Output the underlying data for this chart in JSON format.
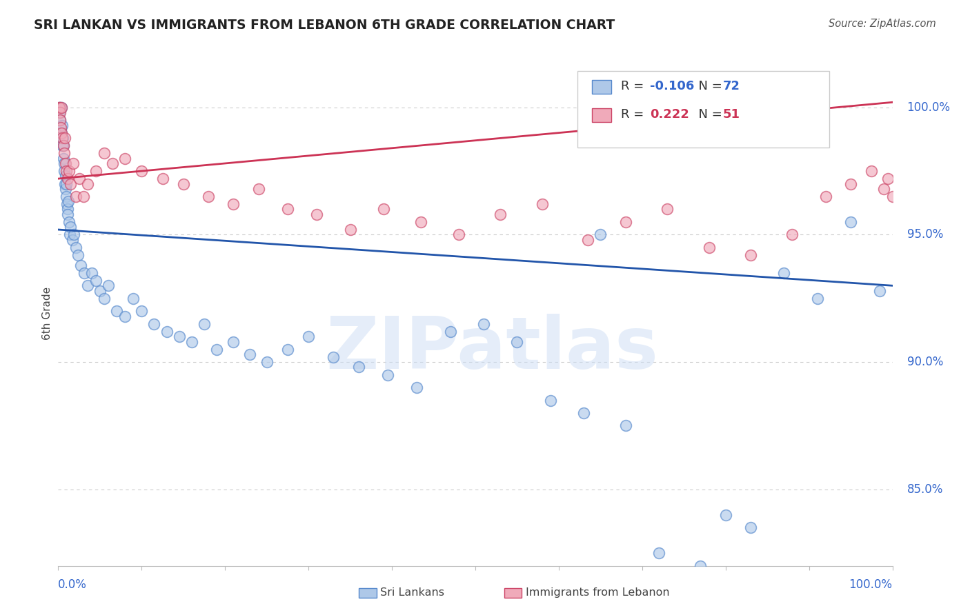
{
  "title": "SRI LANKAN VS IMMIGRANTS FROM LEBANON 6TH GRADE CORRELATION CHART",
  "source": "Source: ZipAtlas.com",
  "ylabel": "6th Grade",
  "right_yticks": [
    85.0,
    90.0,
    95.0,
    100.0
  ],
  "xlim": [
    0.0,
    100.0
  ],
  "ylim": [
    82.0,
    101.8
  ],
  "sri_lankan_R": -0.106,
  "sri_lankan_N": 72,
  "lebanon_R": 0.222,
  "lebanon_N": 51,
  "sri_lankan_color": "#aec8e8",
  "lebanon_color": "#f0aaba",
  "sri_lankan_edge_color": "#5588cc",
  "lebanon_edge_color": "#cc4466",
  "sri_lankan_line_color": "#2255aa",
  "lebanon_line_color": "#cc3355",
  "watermark": "ZIPatlas",
  "sl_trend_start": 95.2,
  "sl_trend_end": 93.0,
  "lb_trend_start": 97.2,
  "lb_trend_end": 100.2,
  "sri_lankans_x": [
    0.1,
    0.15,
    0.2,
    0.25,
    0.3,
    0.35,
    0.4,
    0.45,
    0.5,
    0.55,
    0.6,
    0.65,
    0.7,
    0.75,
    0.8,
    0.85,
    0.9,
    0.95,
    1.0,
    1.05,
    1.1,
    1.15,
    1.2,
    1.3,
    1.4,
    1.5,
    1.7,
    1.9,
    2.1,
    2.4,
    2.7,
    3.1,
    3.5,
    4.0,
    4.5,
    5.0,
    5.5,
    6.0,
    7.0,
    8.0,
    9.0,
    10.0,
    11.5,
    13.0,
    14.5,
    16.0,
    17.5,
    19.0,
    21.0,
    23.0,
    25.0,
    27.5,
    30.0,
    33.0,
    36.0,
    39.5,
    43.0,
    47.0,
    51.0,
    55.0,
    59.0,
    63.0,
    65.0,
    68.0,
    72.0,
    77.0,
    80.0,
    83.0,
    87.0,
    91.0,
    95.0,
    98.5
  ],
  "sri_lankans_y": [
    100.0,
    99.8,
    99.5,
    100.0,
    99.2,
    100.0,
    99.0,
    98.5,
    99.3,
    98.8,
    98.5,
    98.0,
    97.8,
    97.5,
    97.0,
    97.3,
    96.8,
    97.0,
    96.5,
    96.2,
    96.0,
    95.8,
    96.3,
    95.5,
    95.0,
    95.3,
    94.8,
    95.0,
    94.5,
    94.2,
    93.8,
    93.5,
    93.0,
    93.5,
    93.2,
    92.8,
    92.5,
    93.0,
    92.0,
    91.8,
    92.5,
    92.0,
    91.5,
    91.2,
    91.0,
    90.8,
    91.5,
    90.5,
    90.8,
    90.3,
    90.0,
    90.5,
    91.0,
    90.2,
    89.8,
    89.5,
    89.0,
    91.2,
    91.5,
    90.8,
    88.5,
    88.0,
    95.0,
    87.5,
    82.5,
    82.0,
    84.0,
    83.5,
    93.5,
    92.5,
    95.5,
    92.8
  ],
  "lebanon_x": [
    0.1,
    0.15,
    0.2,
    0.25,
    0.3,
    0.35,
    0.4,
    0.5,
    0.6,
    0.7,
    0.8,
    0.9,
    1.0,
    1.1,
    1.3,
    1.5,
    1.8,
    2.1,
    2.5,
    3.0,
    3.5,
    4.5,
    5.5,
    6.5,
    8.0,
    10.0,
    12.5,
    15.0,
    18.0,
    21.0,
    24.0,
    27.5,
    31.0,
    35.0,
    39.0,
    43.5,
    48.0,
    53.0,
    58.0,
    63.5,
    68.0,
    73.0,
    78.0,
    83.0,
    88.0,
    92.0,
    95.0,
    97.5,
    99.0,
    99.5,
    100.0
  ],
  "lebanon_y": [
    100.0,
    100.0,
    99.8,
    99.5,
    99.2,
    100.0,
    99.0,
    98.8,
    98.5,
    98.2,
    98.8,
    97.8,
    97.5,
    97.2,
    97.5,
    97.0,
    97.8,
    96.5,
    97.2,
    96.5,
    97.0,
    97.5,
    98.2,
    97.8,
    98.0,
    97.5,
    97.2,
    97.0,
    96.5,
    96.2,
    96.8,
    96.0,
    95.8,
    95.2,
    96.0,
    95.5,
    95.0,
    95.8,
    96.2,
    94.8,
    95.5,
    96.0,
    94.5,
    94.2,
    95.0,
    96.5,
    97.0,
    97.5,
    96.8,
    97.2,
    96.5
  ]
}
